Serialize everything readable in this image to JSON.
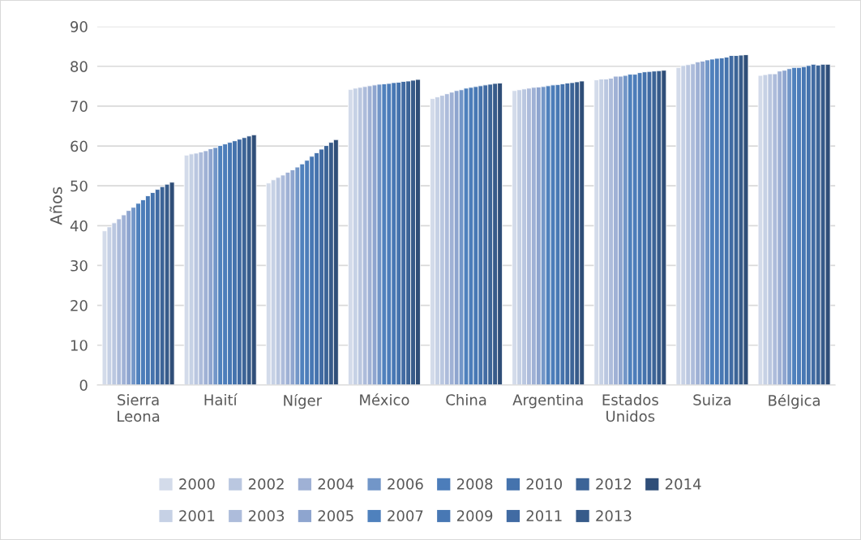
{
  "chart_data": {
    "type": "bar",
    "ylabel": "Años",
    "categories": [
      "Sierra\nLeona",
      "Haití",
      "Níger",
      "México",
      "China",
      "Argentina",
      "Estados\nUnidos",
      "Suiza",
      "Bélgica"
    ],
    "ylim": [
      0,
      90
    ],
    "yticks": [
      0,
      10,
      20,
      30,
      40,
      50,
      60,
      70,
      80,
      90
    ],
    "grid": "y",
    "legend": "bottom",
    "series": [
      {
        "name": "2000",
        "color": "#d3dbea",
        "values": [
          38.7,
          57.7,
          50.7,
          74.2,
          71.9,
          73.9,
          76.6,
          79.7,
          77.7
        ]
      },
      {
        "name": "2001",
        "color": "#c6d1e5",
        "values": [
          39.7,
          58.0,
          51.5,
          74.5,
          72.3,
          74.1,
          76.8,
          80.2,
          77.9
        ]
      },
      {
        "name": "2002",
        "color": "#bac7e0",
        "values": [
          40.7,
          58.2,
          52.1,
          74.7,
          72.7,
          74.3,
          76.8,
          80.4,
          78.1
        ]
      },
      {
        "name": "2003",
        "color": "#adbcdb",
        "values": [
          41.7,
          58.5,
          52.7,
          74.9,
          73.1,
          74.5,
          77.0,
          80.6,
          78.1
        ]
      },
      {
        "name": "2004",
        "color": "#9fb1d5",
        "values": [
          42.7,
          58.8,
          53.4,
          75.1,
          73.5,
          74.7,
          77.5,
          81.1,
          78.8
        ]
      },
      {
        "name": "2005",
        "color": "#8ea5cf",
        "values": [
          43.8,
          59.3,
          54.0,
          75.3,
          73.9,
          74.8,
          77.5,
          81.3,
          79.0
        ]
      },
      {
        "name": "2006",
        "color": "#7296c8",
        "values": [
          44.6,
          59.6,
          54.7,
          75.5,
          74.1,
          74.9,
          77.7,
          81.6,
          79.4
        ]
      },
      {
        "name": "2007",
        "color": "#4f81bd",
        "values": [
          45.6,
          60.1,
          55.5,
          75.6,
          74.5,
          75.1,
          78.0,
          81.8,
          79.7
        ]
      },
      {
        "name": "2008",
        "color": "#4c7dba",
        "values": [
          46.5,
          60.5,
          56.4,
          75.7,
          74.7,
          75.3,
          78.0,
          82.0,
          79.7
        ]
      },
      {
        "name": "2009",
        "color": "#4878b4",
        "values": [
          47.5,
          60.9,
          57.4,
          75.9,
          74.9,
          75.4,
          78.4,
          82.1,
          79.9
        ]
      },
      {
        "name": "2010",
        "color": "#4573ad",
        "values": [
          48.3,
          61.3,
          58.3,
          76.0,
          75.1,
          75.6,
          78.6,
          82.3,
          80.2
        ]
      },
      {
        "name": "2011",
        "color": "#416ba3",
        "values": [
          49.1,
          61.7,
          59.2,
          76.2,
          75.3,
          75.8,
          78.7,
          82.7,
          80.5
        ]
      },
      {
        "name": "2012",
        "color": "#3c6497",
        "values": [
          49.8,
          62.1,
          60.1,
          76.3,
          75.5,
          75.9,
          78.8,
          82.7,
          80.3
        ]
      },
      {
        "name": "2013",
        "color": "#375b8a",
        "values": [
          50.4,
          62.5,
          60.9,
          76.5,
          75.7,
          76.1,
          78.9,
          82.8,
          80.5
        ]
      },
      {
        "name": "2014",
        "color": "#2f4e78",
        "values": [
          50.9,
          62.8,
          61.6,
          76.7,
          75.8,
          76.3,
          79.0,
          82.9,
          80.5
        ]
      }
    ]
  }
}
